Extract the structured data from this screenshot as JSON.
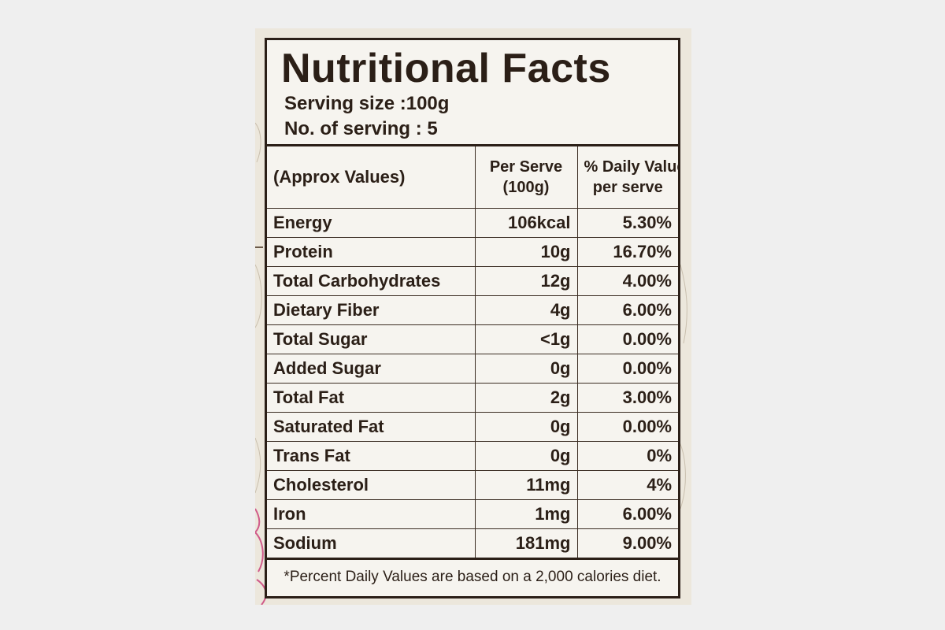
{
  "label": {
    "title": "Nutritional Facts",
    "serving_size": "Serving size :100g",
    "servings_count": "No. of serving : 5",
    "table": {
      "headers": {
        "col1": "(Approx Values)",
        "col2_line1": "Per Serve",
        "col2_line2": "(100g)",
        "col3_line1": "% Daily Value",
        "col3_line2": "per serve"
      },
      "rows": [
        {
          "nutrient": "Energy",
          "per_serve": "106kcal",
          "daily_value": "5.30%"
        },
        {
          "nutrient": "Protein",
          "per_serve": "10g",
          "daily_value": "16.70%"
        },
        {
          "nutrient": "Total Carbohydrates",
          "per_serve": "12g",
          "daily_value": "4.00%"
        },
        {
          "nutrient": "Dietary Fiber",
          "per_serve": "4g",
          "daily_value": "6.00%"
        },
        {
          "nutrient": "Total Sugar",
          "per_serve": "<1g",
          "daily_value": "0.00%"
        },
        {
          "nutrient": "Added Sugar",
          "per_serve": "0g",
          "daily_value": "0.00%"
        },
        {
          "nutrient": "Total Fat",
          "per_serve": "2g",
          "daily_value": "3.00%"
        },
        {
          "nutrient": "Saturated Fat",
          "per_serve": "0g",
          "daily_value": "0.00%"
        },
        {
          "nutrient": "Trans Fat",
          "per_serve": "0g",
          "daily_value": "0%"
        },
        {
          "nutrient": "Cholesterol",
          "per_serve": "11mg",
          "daily_value": "4%"
        },
        {
          "nutrient": "Iron",
          "per_serve": "1mg",
          "daily_value": "6.00%"
        },
        {
          "nutrient": "Sodium",
          "per_serve": "181mg",
          "daily_value": "9.00%"
        }
      ]
    },
    "footnote": "*Percent Daily Values are based on a 2,000 calories diet."
  },
  "colors": {
    "ink": "#2b1f17",
    "label_background": "#f6f4ef",
    "package_background": "#ece7dc",
    "page_background": "#efefef",
    "pink_decoration": "#d05a8a"
  }
}
